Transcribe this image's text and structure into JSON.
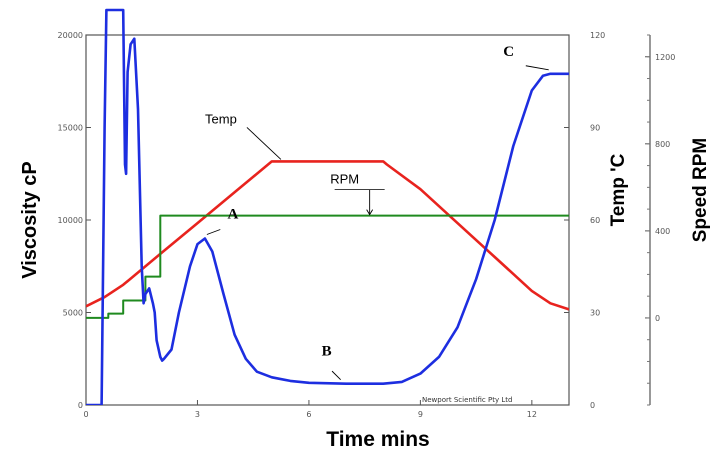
{
  "chart_data": {
    "type": "line",
    "title": "",
    "xlabel": "Time mins",
    "ylabel_left": "Viscosity cP",
    "ylabel_right_temp": "Temp 'C",
    "ylabel_right_speed": "Speed RPM",
    "credit": "Newport Scientific Pty Ltd",
    "xlim": [
      0,
      13
    ],
    "x_ticks": [
      "0",
      "3",
      "6",
      "9",
      "12"
    ],
    "x_tick_values": [
      0,
      3,
      6,
      9,
      12
    ],
    "viscosity_axis": {
      "ylim": [
        0,
        20000
      ],
      "tick_values": [
        0,
        5000,
        10000,
        15000,
        20000
      ],
      "tick_labels": [
        "0",
        "5000",
        "10000",
        "15000",
        "20000"
      ]
    },
    "temp_axis": {
      "ylim": [
        0,
        120
      ],
      "tick_values": [
        0,
        30,
        60,
        90,
        120
      ],
      "tick_labels": [
        "0",
        "30",
        "60",
        "90",
        "120"
      ]
    },
    "speed_axis": {
      "ylim": [
        -400,
        1300
      ],
      "tick_values": [
        0,
        400,
        800,
        1200
      ],
      "tick_labels": [
        "0",
        "400",
        "800",
        "1200"
      ]
    },
    "grid": false,
    "series": [
      {
        "name": "Temp",
        "color": "#e8231e",
        "axis": "temp",
        "x": [
          0,
          0.5,
          1,
          2,
          3,
          4,
          5,
          6,
          7,
          8,
          8.1,
          9,
          10,
          11,
          12,
          12.5,
          13
        ],
        "y": [
          32,
          35,
          39,
          49,
          59,
          69,
          79,
          79,
          79,
          79,
          78,
          70,
          59,
          48,
          37,
          33,
          31
        ]
      },
      {
        "name": "RPM",
        "color": "#1f8a1f",
        "axis": "speed",
        "x": [
          0,
          0.6,
          0.6,
          1.0,
          1.0,
          1.6,
          1.6,
          1.8,
          1.8,
          2.0,
          2.0,
          13
        ],
        "y": [
          0,
          0,
          20,
          20,
          80,
          80,
          190,
          190,
          190,
          190,
          470,
          470
        ]
      },
      {
        "name": "Viscosity",
        "color": "#1d2ee0",
        "axis": "viscosity",
        "x": [
          0,
          0.37,
          0.42,
          0.5,
          0.55,
          0.6,
          0.7,
          0.9,
          1.0,
          1.05,
          1.08,
          1.12,
          1.2,
          1.3,
          1.4,
          1.5,
          1.55,
          1.6,
          1.7,
          1.8,
          1.85,
          1.9,
          2.0,
          2.05,
          2.1,
          2.3,
          2.5,
          2.8,
          3.0,
          3.2,
          3.4,
          3.7,
          4.0,
          4.3,
          4.6,
          5.0,
          5.5,
          6.0,
          7.0,
          8.0,
          8.5,
          9.0,
          9.5,
          10.0,
          10.5,
          11.0,
          11.5,
          12.0,
          12.3,
          12.5,
          12.7,
          13
        ],
        "y": [
          0,
          0,
          0,
          15000,
          22000,
          22000,
          22000,
          22000,
          22000,
          13000,
          12500,
          18000,
          19500,
          19800,
          16000,
          7500,
          5500,
          6000,
          6300,
          5500,
          5000,
          3500,
          2600,
          2400,
          2500,
          3000,
          5000,
          7500,
          8700,
          9000,
          8300,
          6000,
          3800,
          2500,
          1800,
          1500,
          1300,
          1200,
          1150,
          1150,
          1250,
          1700,
          2600,
          4200,
          6800,
          10000,
          14000,
          17000,
          17800,
          17900,
          17900,
          17900
        ]
      }
    ],
    "annotations": [
      {
        "text": "A",
        "x": 3.2,
        "y": 9000,
        "axis": "viscosity"
      },
      {
        "text": "B",
        "x": 6.8,
        "y": 1150,
        "axis": "viscosity"
      },
      {
        "text": "C",
        "x": 12.4,
        "y": 17900,
        "axis": "viscosity"
      }
    ],
    "series_labels": [
      {
        "text": "Temp",
        "points_to_x": 5.3,
        "points_to_y": 79,
        "axis": "temp"
      },
      {
        "text": "RPM",
        "points_to_x": 7.5,
        "points_to_y": 470,
        "axis": "speed"
      }
    ]
  }
}
